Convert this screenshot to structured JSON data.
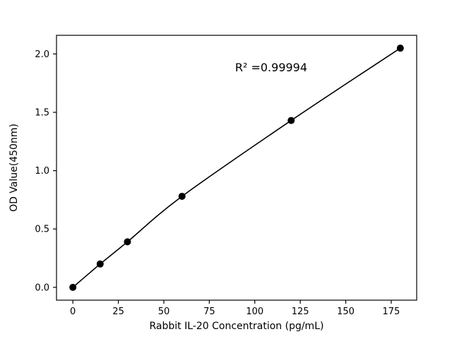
{
  "chart_data": {
    "type": "scatter",
    "title": "",
    "xlabel": "Rabbit IL-20 Concentration (pg/mL)",
    "ylabel": "OD Value(450nm)",
    "x": [
      0,
      15,
      30,
      60,
      120,
      180
    ],
    "y": [
      0.0,
      0.2,
      0.39,
      0.78,
      1.43,
      2.05
    ],
    "xlim": [
      -9,
      189
    ],
    "ylim": [
      -0.11,
      2.16
    ],
    "xticks": [
      0,
      25,
      50,
      75,
      100,
      125,
      150,
      175
    ],
    "yticks": [
      0.0,
      0.5,
      1.0,
      1.5,
      2.0
    ],
    "grid": false,
    "legend": null,
    "line_color": "#000000",
    "marker_color": "#000000",
    "background_color": "#ffffff",
    "annotation": {
      "text": "R² =0.99994",
      "x": 109,
      "y": 1.85
    }
  }
}
